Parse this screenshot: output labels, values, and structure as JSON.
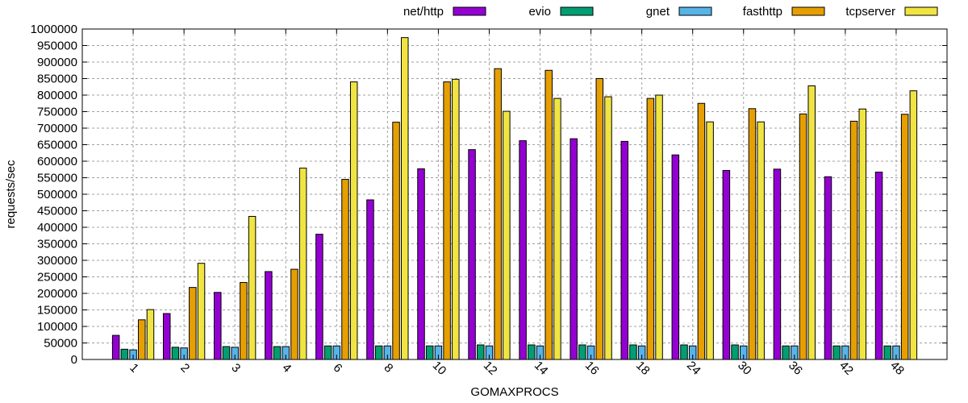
{
  "chart_data": {
    "type": "bar",
    "title": "",
    "xlabel": "GOMAXPROCS",
    "ylabel": "requests/sec",
    "ylim": [
      0,
      1000000
    ],
    "yticks": [
      0,
      50000,
      100000,
      150000,
      200000,
      250000,
      300000,
      350000,
      400000,
      450000,
      500000,
      550000,
      600000,
      650000,
      700000,
      750000,
      800000,
      850000,
      900000,
      950000,
      1000000
    ],
    "grid": true,
    "legend_position": "top",
    "categories": [
      "1",
      "2",
      "3",
      "4",
      "6",
      "8",
      "10",
      "12",
      "14",
      "16",
      "18",
      "24",
      "30",
      "36",
      "42",
      "48"
    ],
    "series": [
      {
        "name": "net/http",
        "color": "#9400d3",
        "values": [
          73000,
          139000,
          203000,
          266000,
          379000,
          483000,
          577000,
          635000,
          662000,
          668000,
          660000,
          619000,
          572000,
          576000,
          553000,
          567000
        ]
      },
      {
        "name": "evio",
        "color": "#009e73",
        "values": [
          31000,
          37000,
          39000,
          39000,
          41000,
          41000,
          41000,
          44000,
          44000,
          44000,
          44000,
          44000,
          44000,
          41000,
          41000,
          41000
        ]
      },
      {
        "name": "gnet",
        "color": "#56b4e9",
        "values": [
          29000,
          35000,
          37000,
          39000,
          41000,
          41000,
          41000,
          41000,
          41000,
          41000,
          41000,
          41000,
          41000,
          41000,
          41000,
          41000
        ]
      },
      {
        "name": "fasthttp",
        "color": "#e69f00",
        "values": [
          120000,
          218000,
          233000,
          273000,
          545000,
          718000,
          840000,
          880000,
          875000,
          850000,
          790000,
          775000,
          759000,
          743000,
          721000,
          742000
        ]
      },
      {
        "name": "tcpserver",
        "color": "#f0e442",
        "values": [
          151000,
          291000,
          433000,
          579000,
          840000,
          974000,
          848000,
          751000,
          790000,
          795000,
          800000,
          719000,
          719000,
          828000,
          758000,
          813000
        ]
      }
    ]
  }
}
